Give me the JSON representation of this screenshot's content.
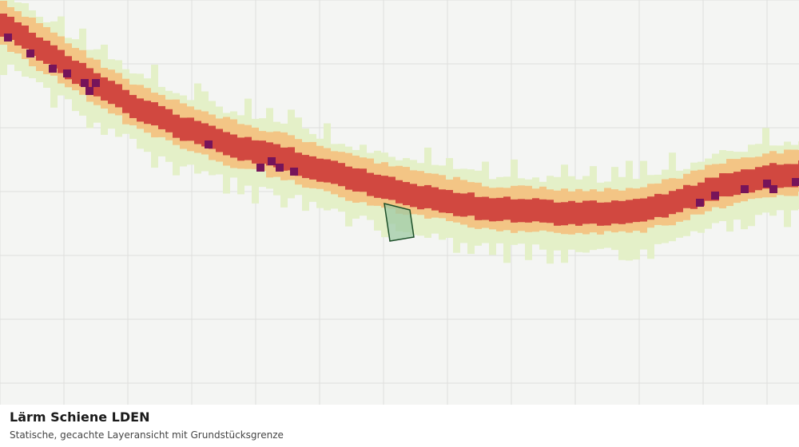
{
  "caption": {
    "title": "Lärm Schiene LDEN",
    "subtitle": "Statische, gecachte Layeransicht mit Grundstücksgrenze"
  },
  "colors": {
    "background": "#f4f5f3",
    "grid": "#dedfdc",
    "class_low": "#e4f0c8",
    "class_mid": "#f3c585",
    "class_high": "#d14840",
    "class_very_high": "#76145a",
    "parcel_fill": "#9fc9a4",
    "parcel_stroke": "#1c4f28"
  }
}
